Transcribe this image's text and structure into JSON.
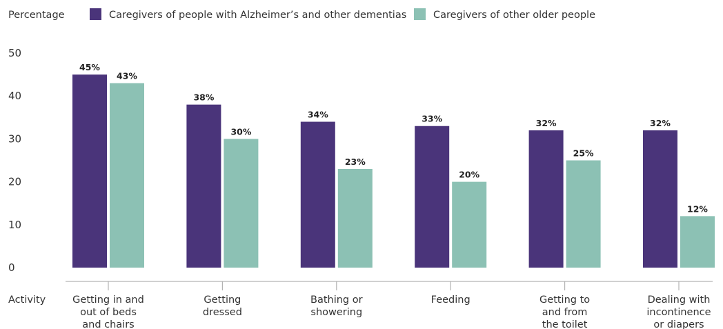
{
  "chart_data": {
    "type": "bar",
    "ylabel": "Percentage",
    "xlabel": "Activity",
    "ylim": [
      0,
      50
    ],
    "yticks": [
      0,
      10,
      20,
      30,
      40,
      50
    ],
    "grid": false,
    "legend_position": "top",
    "categories": [
      [
        "Getting in and",
        "out of beds",
        "and chairs"
      ],
      [
        "Getting",
        "dressed"
      ],
      [
        "Bathing or",
        "showering"
      ],
      [
        "Feeding"
      ],
      [
        "Getting to",
        "and from",
        "the toilet"
      ],
      [
        "Dealing with",
        "incontinence",
        "or diapers"
      ]
    ],
    "series": [
      {
        "name": "Caregivers of people with Alzheimer’s and other dementias",
        "color": "#4a347a",
        "values": [
          45,
          38,
          34,
          33,
          32,
          32
        ],
        "labels": [
          "45%",
          "38%",
          "34%",
          "33%",
          "32%",
          "32%"
        ]
      },
      {
        "name": "Caregivers of other older people",
        "color": "#8cc1b4",
        "values": [
          43,
          30,
          23,
          20,
          25,
          12
        ],
        "labels": [
          "43%",
          "30%",
          "23%",
          "20%",
          "25%",
          "12%"
        ]
      }
    ]
  }
}
